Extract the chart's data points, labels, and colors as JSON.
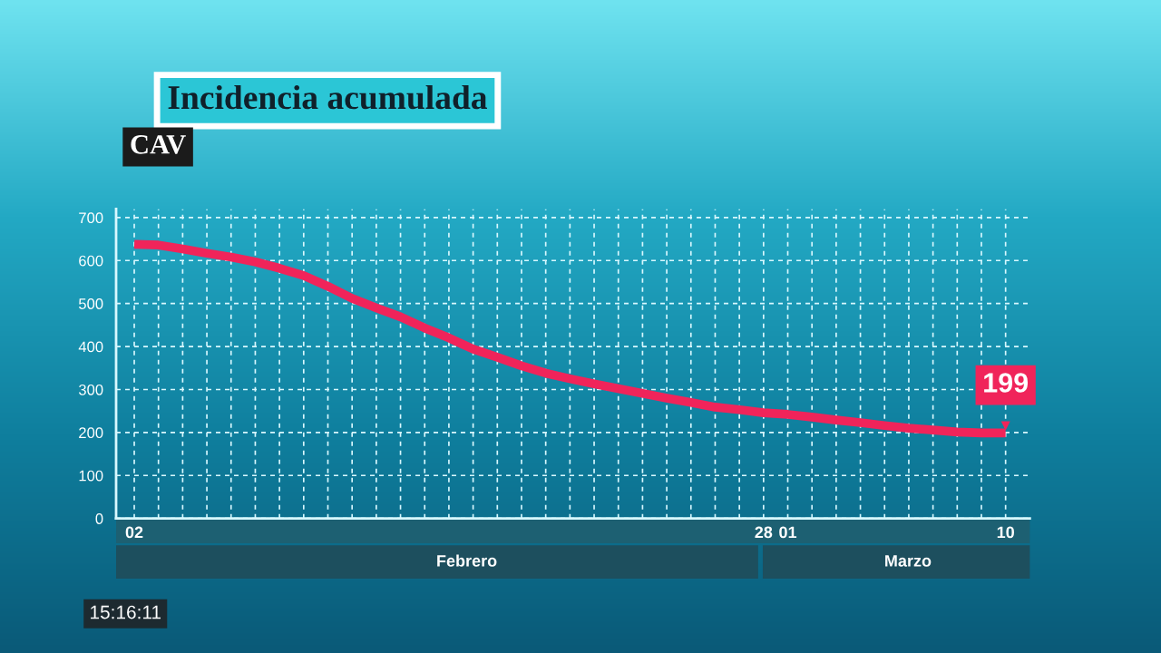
{
  "chart_data": {
    "type": "line",
    "title": "Incidencia acumulada",
    "subtitle": "CAV",
    "categories": [
      "02",
      null,
      null,
      null,
      null,
      null,
      null,
      null,
      null,
      null,
      null,
      null,
      null,
      null,
      null,
      null,
      null,
      null,
      null,
      null,
      null,
      null,
      null,
      null,
      null,
      null,
      "28",
      "01",
      null,
      null,
      null,
      null,
      null,
      null,
      null,
      null,
      "10"
    ],
    "series": [
      {
        "color": "#f0245a",
        "values": [
          638,
          636,
          627,
          617,
          608,
          597,
          582,
          565,
          540,
          512,
          490,
          469,
          443,
          420,
          394,
          375,
          355,
          338,
          325,
          313,
          302,
          291,
          280,
          270,
          259,
          253,
          246,
          242,
          236,
          229,
          223,
          216,
          210,
          206,
          201,
          199,
          199
        ],
        "value_labels": [
          null,
          null,
          null,
          null,
          null,
          null,
          null,
          null,
          null,
          null,
          null,
          null,
          null,
          null,
          null,
          null,
          null,
          null,
          null,
          null,
          null,
          null,
          null,
          null,
          null,
          null,
          null,
          null,
          null,
          null,
          null,
          null,
          null,
          null,
          null,
          null,
          "199"
        ]
      }
    ],
    "ylim": [
      0,
      720
    ],
    "yticks": [
      0,
      100,
      200,
      300,
      400,
      500,
      600,
      700
    ],
    "grid": true,
    "line_style": "solid",
    "marker": "none",
    "annotations": [
      "Febrero",
      "Marzo",
      "15:16:11"
    ]
  }
}
